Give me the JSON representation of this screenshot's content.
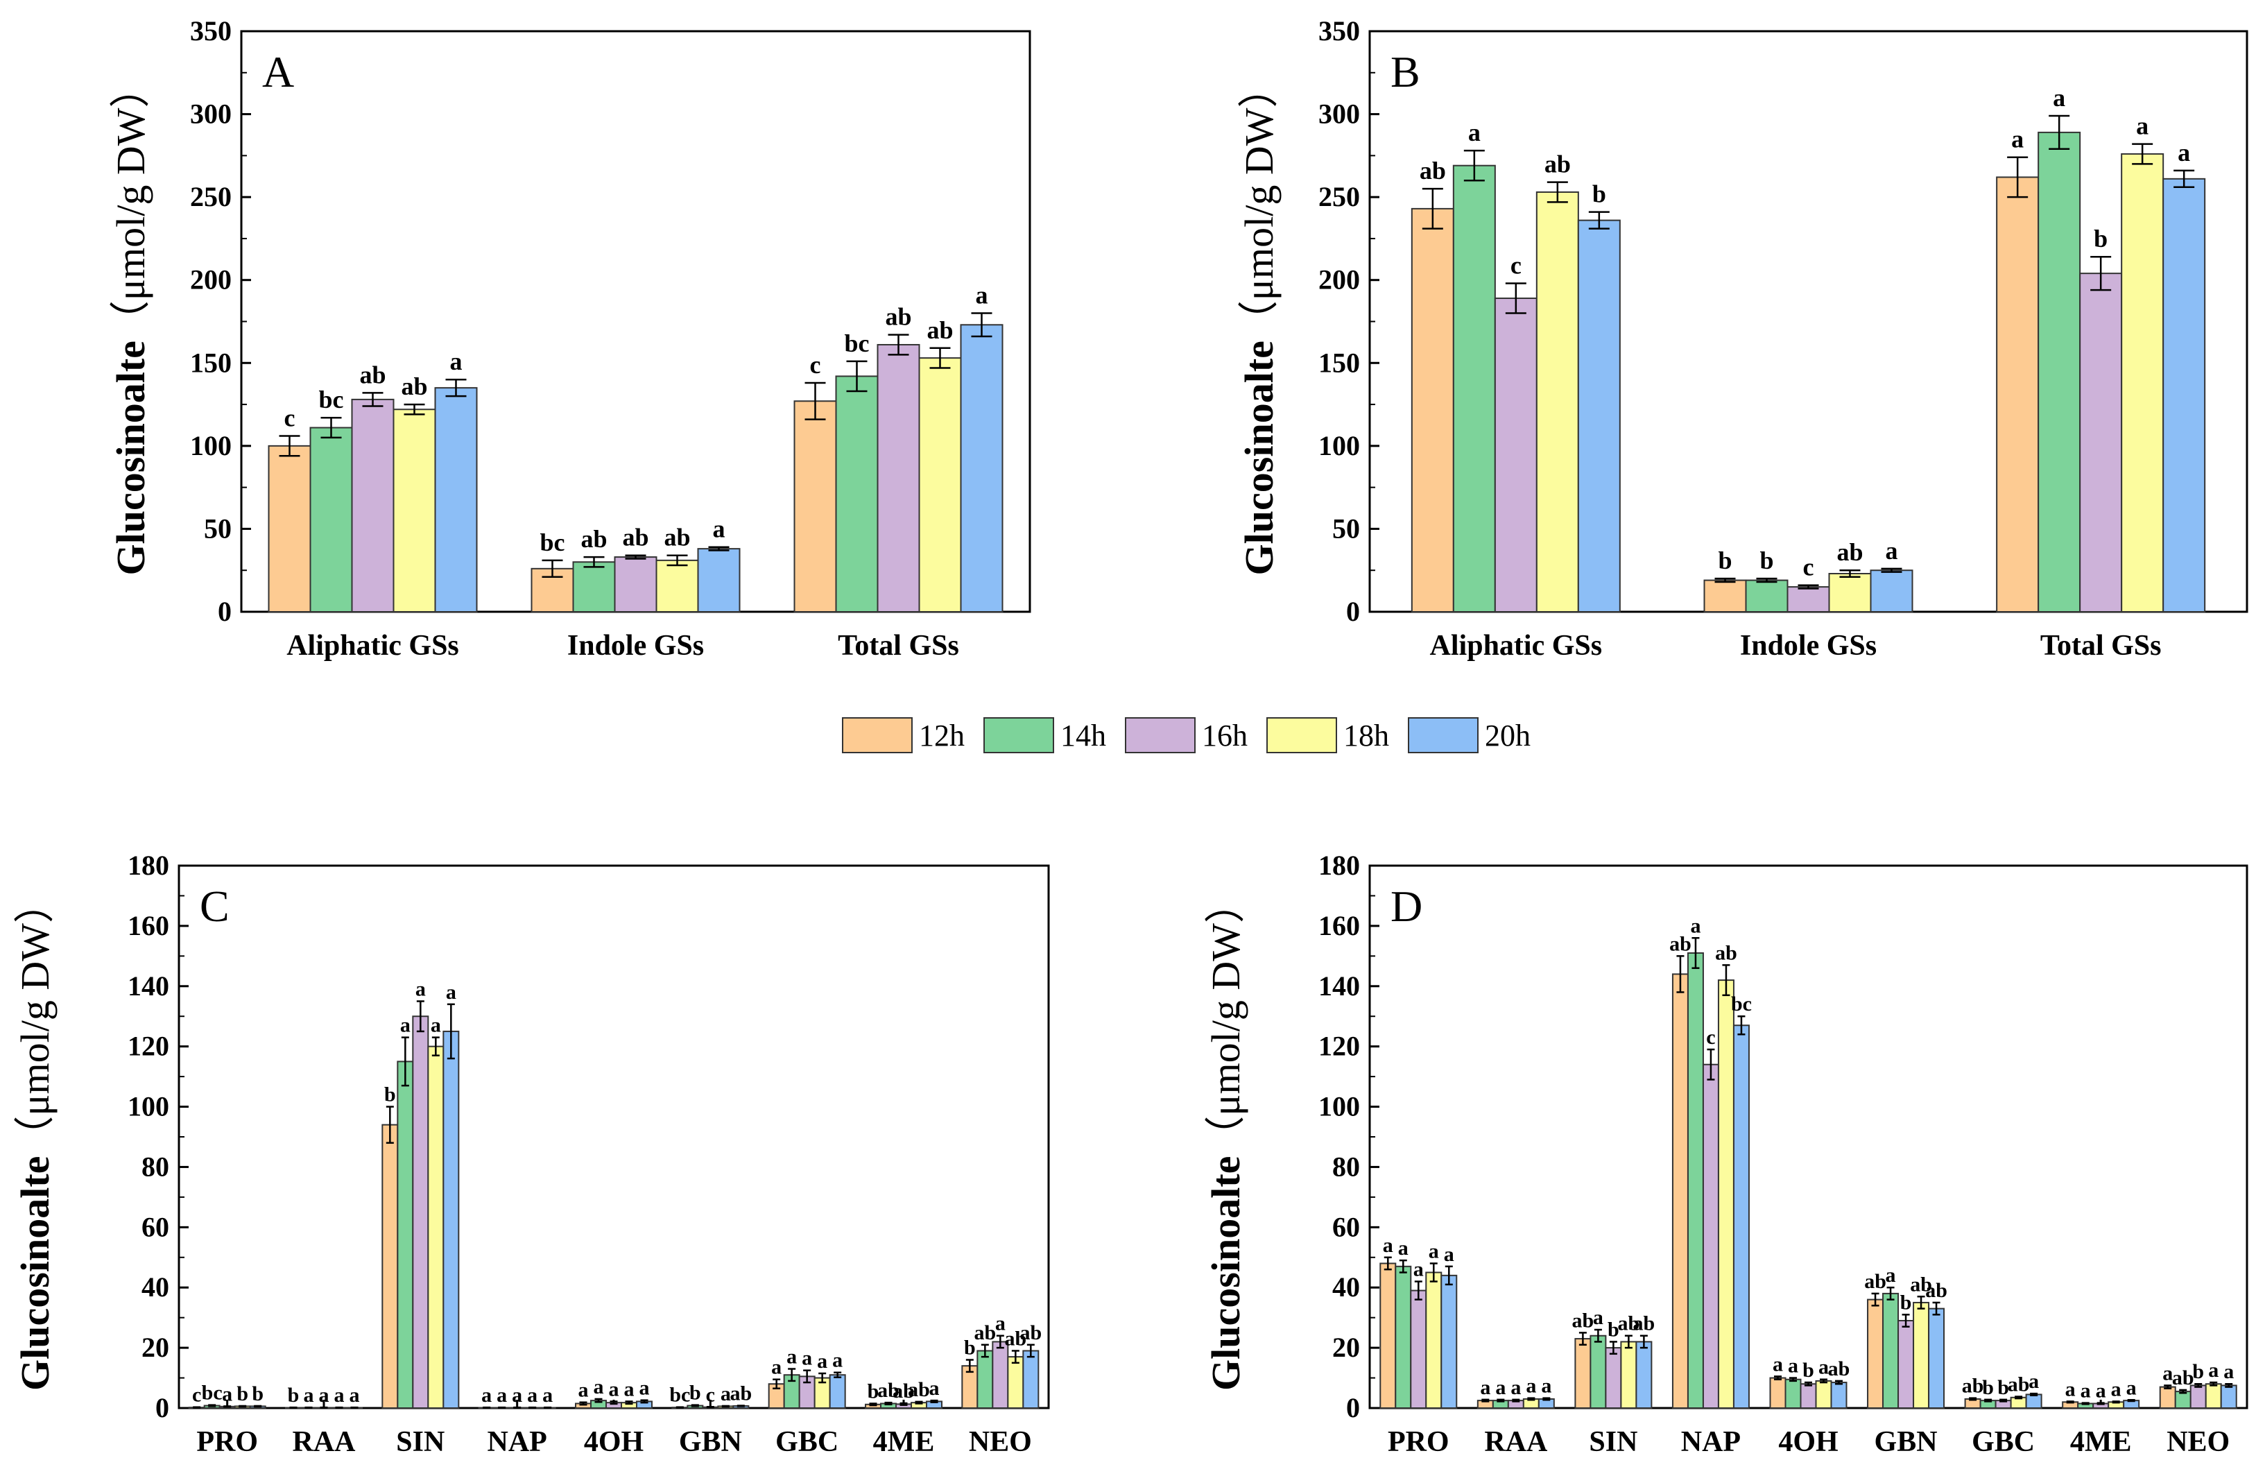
{
  "series_names": [
    "12h",
    "14h",
    "16h",
    "18h",
    "20h"
  ],
  "colors": [
    "#FDCB92",
    "#7DD39A",
    "#CDB2D9",
    "#FCFC9E",
    "#8CBEF6"
  ],
  "chart_data": [
    {
      "panel": "A",
      "type": "bar",
      "ylabel": "Glucosinoalte",
      "yunit": "（μmol/g DW）",
      "ylim": [
        0,
        350
      ],
      "yticks": [
        0,
        50,
        100,
        150,
        200,
        250,
        300,
        350
      ],
      "categories": [
        "Aliphatic GSs",
        "Indole GSs",
        "Total GSs"
      ],
      "series": [
        {
          "name": "12h",
          "values": [
            100,
            26,
            127
          ],
          "errors": [
            6,
            5,
            11
          ],
          "letters": [
            "c",
            "bc",
            "c"
          ]
        },
        {
          "name": "14h",
          "values": [
            111,
            30,
            142
          ],
          "errors": [
            6,
            3,
            9
          ],
          "letters": [
            "bc",
            "ab",
            "bc"
          ]
        },
        {
          "name": "16h",
          "values": [
            128,
            33,
            161
          ],
          "errors": [
            4,
            1,
            6
          ],
          "letters": [
            "ab",
            "ab",
            "ab"
          ]
        },
        {
          "name": "18h",
          "values": [
            122,
            31,
            153
          ],
          "errors": [
            3,
            3,
            6
          ],
          "letters": [
            "ab",
            "ab",
            "ab"
          ]
        },
        {
          "name": "20h",
          "values": [
            135,
            38,
            173
          ],
          "errors": [
            5,
            1,
            7
          ],
          "letters": [
            "a",
            "a",
            "a"
          ]
        }
      ]
    },
    {
      "panel": "B",
      "type": "bar",
      "ylabel": "Glucosinoalte",
      "yunit": "（μmol/g DW）",
      "ylim": [
        0,
        350
      ],
      "yticks": [
        0,
        50,
        100,
        150,
        200,
        250,
        300,
        350
      ],
      "categories": [
        "Aliphatic GSs",
        "Indole GSs",
        "Total GSs"
      ],
      "series": [
        {
          "name": "12h",
          "values": [
            243,
            19,
            262
          ],
          "errors": [
            12,
            1,
            12
          ],
          "letters": [
            "ab",
            "b",
            "a"
          ]
        },
        {
          "name": "14h",
          "values": [
            269,
            19,
            289
          ],
          "errors": [
            9,
            1,
            10
          ],
          "letters": [
            "a",
            "b",
            "a"
          ]
        },
        {
          "name": "16h",
          "values": [
            189,
            15,
            204
          ],
          "errors": [
            9,
            1,
            10
          ],
          "letters": [
            "c",
            "c",
            "b"
          ]
        },
        {
          "name": "18h",
          "values": [
            253,
            23,
            276
          ],
          "errors": [
            6,
            2,
            6
          ],
          "letters": [
            "ab",
            "ab",
            "a"
          ]
        },
        {
          "name": "20h",
          "values": [
            236,
            25,
            261
          ],
          "errors": [
            5,
            1,
            5
          ],
          "letters": [
            "b",
            "a",
            "a"
          ]
        }
      ]
    },
    {
      "panel": "C",
      "type": "bar",
      "ylabel": "Glucosinoalte",
      "yunit": "（μmol/g DW）",
      "ylim": [
        0,
        180
      ],
      "yticks": [
        0,
        20,
        40,
        60,
        80,
        100,
        120,
        140,
        160,
        180
      ],
      "categories": [
        "PRO",
        "RAA",
        "SIN",
        "NAP",
        "4OH",
        "GBN",
        "GBC",
        "4ME",
        "NEO"
      ],
      "series": [
        {
          "name": "12h",
          "values": [
            0.2,
            0.1,
            94,
            0.1,
            1.5,
            0.2,
            8,
            1.2,
            14
          ],
          "errors": [
            0.1,
            0.1,
            6,
            0.1,
            0.4,
            0.1,
            1.5,
            0.3,
            2
          ],
          "letters": [
            "c",
            "b",
            "b",
            "a",
            "a",
            "bc",
            "a",
            "b",
            "b"
          ]
        },
        {
          "name": "14h",
          "values": [
            0.8,
            0.1,
            115,
            0.1,
            2.5,
            0.8,
            11,
            1.5,
            19
          ],
          "errors": [
            0.2,
            0.1,
            8,
            0.1,
            0.5,
            0.2,
            2,
            0.3,
            2
          ],
          "letters": [
            "bc",
            "a",
            "a",
            "a",
            "a",
            "b",
            "a",
            "ab",
            "ab"
          ]
        },
        {
          "name": "16h",
          "values": [
            0.5,
            0.1,
            130,
            0.1,
            1.8,
            0.3,
            10.5,
            1.3,
            22
          ],
          "errors": [
            0.1,
            0.1,
            5,
            0.1,
            0.4,
            0.1,
            2,
            0.3,
            2
          ],
          "letters": [
            "a",
            "a",
            "a",
            "a",
            "a",
            "c",
            "a",
            "ab",
            "a"
          ]
        },
        {
          "name": "18h",
          "values": [
            0.6,
            0.1,
            120,
            0.1,
            1.8,
            0.6,
            10,
            1.8,
            17
          ],
          "errors": [
            0.1,
            0.1,
            3,
            0.1,
            0.4,
            0.1,
            1.5,
            0.3,
            2
          ],
          "letters": [
            "b",
            "a",
            "a",
            "a",
            "a",
            "a",
            "a",
            "ab",
            "ab"
          ]
        },
        {
          "name": "20h",
          "values": [
            0.6,
            0.1,
            125,
            0.1,
            2.2,
            0.7,
            11,
            2.2,
            19
          ],
          "errors": [
            0.1,
            0.1,
            9,
            0.1,
            0.4,
            0.1,
            0.8,
            0.3,
            2
          ],
          "letters": [
            "b",
            "a",
            "a",
            "a",
            "a",
            "ab",
            "a",
            "a",
            "ab"
          ]
        }
      ]
    },
    {
      "panel": "D",
      "type": "bar",
      "ylabel": "Glucosinoalte",
      "yunit": "（μmol/g DW）",
      "ylim": [
        0,
        180
      ],
      "yticks": [
        0,
        20,
        40,
        60,
        80,
        100,
        120,
        140,
        160,
        180
      ],
      "categories": [
        "PRO",
        "RAA",
        "SIN",
        "NAP",
        "4OH",
        "GBN",
        "GBC",
        "4ME",
        "NEO"
      ],
      "series": [
        {
          "name": "12h",
          "values": [
            48,
            2.5,
            23,
            144,
            10,
            36,
            3,
            2,
            7
          ],
          "errors": [
            2,
            0.3,
            2,
            6,
            0.5,
            2,
            0.3,
            0.2,
            0.5
          ],
          "letters": [
            "a",
            "a",
            "ab",
            "ab",
            "a",
            "ab",
            "ab",
            "a",
            "a"
          ]
        },
        {
          "name": "14h",
          "values": [
            47,
            2.5,
            24,
            151,
            9.5,
            38,
            2.5,
            1.5,
            5.5
          ],
          "errors": [
            2,
            0.3,
            2,
            5,
            0.5,
            2,
            0.3,
            0.2,
            0.5
          ],
          "letters": [
            "a",
            "a",
            "a",
            "a",
            "a",
            "a",
            "b",
            "a",
            "ab"
          ]
        },
        {
          "name": "16h",
          "values": [
            39,
            2.5,
            20,
            114,
            8,
            29,
            2.5,
            1.5,
            7.5
          ],
          "errors": [
            3,
            0.3,
            2,
            5,
            0.5,
            2,
            0.3,
            0.2,
            0.5
          ],
          "letters": [
            "a",
            "a",
            "b",
            "c",
            "b",
            "b",
            "b",
            "a",
            "b"
          ]
        },
        {
          "name": "18h",
          "values": [
            45,
            3,
            22,
            142,
            9,
            35,
            3.5,
            2,
            8
          ],
          "errors": [
            3,
            0.3,
            2,
            5,
            0.5,
            2,
            0.3,
            0.2,
            0.5
          ],
          "letters": [
            "a",
            "a",
            "ab",
            "ab",
            "a",
            "ab",
            "ab",
            "a",
            "a"
          ]
        },
        {
          "name": "20h",
          "values": [
            44,
            3,
            22,
            127,
            8.5,
            33,
            4.5,
            2.5,
            7.5
          ],
          "errors": [
            3,
            0.3,
            2,
            3,
            0.5,
            2,
            0.3,
            0.2,
            0.5
          ],
          "letters": [
            "a",
            "a",
            "ab",
            "bc",
            "ab",
            "ab",
            "a",
            "a",
            "a"
          ]
        }
      ]
    }
  ]
}
